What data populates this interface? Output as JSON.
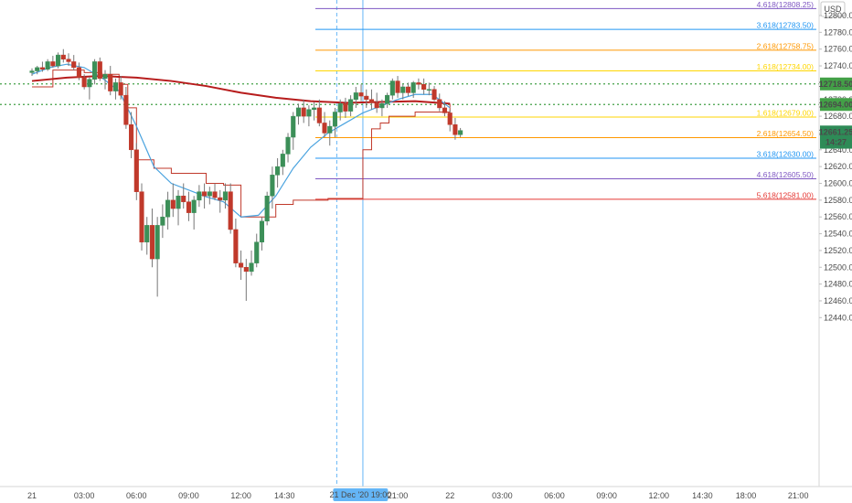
{
  "chart_data": {
    "type": "candlestick",
    "currency": "USD",
    "title": "",
    "xlabel": "",
    "ylabel": "",
    "ylim": [
      12420,
      12818
    ],
    "y_ticks": [
      12440,
      12460,
      12480,
      12500,
      12520,
      12540,
      12560,
      12580,
      12600,
      12620,
      12640,
      12660,
      12680,
      12700,
      12720,
      12740,
      12760,
      12780,
      12800
    ],
    "x_ticks": [
      {
        "t": 0,
        "label": "21"
      },
      {
        "t": 3,
        "label": "03:00"
      },
      {
        "t": 6,
        "label": "06:00"
      },
      {
        "t": 9,
        "label": "09:00"
      },
      {
        "t": 12,
        "label": "12:00"
      },
      {
        "t": 14.5,
        "label": "14:30"
      },
      {
        "t": 21,
        "label": "21:00"
      },
      {
        "t": 24,
        "label": "22"
      },
      {
        "t": 27,
        "label": "03:00"
      },
      {
        "t": 30,
        "label": "06:00"
      },
      {
        "t": 33,
        "label": "09:00"
      },
      {
        "t": 36,
        "label": "12:00"
      },
      {
        "t": 38.5,
        "label": "14:30"
      },
      {
        "t": 41,
        "label": "18:00"
      },
      {
        "t": 44,
        "label": "21:00"
      }
    ],
    "crosshair_label": "21 Dec '20   19:00",
    "candles": [
      [
        0.0,
        12732,
        12737,
        12728,
        12734
      ],
      [
        0.3,
        12734,
        12740,
        12730,
        12738
      ],
      [
        0.6,
        12738,
        12745,
        12733,
        12736
      ],
      [
        0.9,
        12736,
        12748,
        12734,
        12745
      ],
      [
        1.2,
        12745,
        12752,
        12738,
        12740
      ],
      [
        1.5,
        12740,
        12756,
        12737,
        12753
      ],
      [
        1.8,
        12753,
        12760,
        12744,
        12748
      ],
      [
        2.1,
        12748,
        12755,
        12740,
        12745
      ],
      [
        2.4,
        12745,
        12753,
        12735,
        12738
      ],
      [
        2.7,
        12738,
        12744,
        12723,
        12726
      ],
      [
        3.0,
        12726,
        12730,
        12712,
        12715
      ],
      [
        3.3,
        12715,
        12727,
        12700,
        12724
      ],
      [
        3.6,
        12724,
        12748,
        12718,
        12745
      ],
      [
        3.9,
        12745,
        12750,
        12722,
        12725
      ],
      [
        4.2,
        12725,
        12735,
        12712,
        12730
      ],
      [
        4.5,
        12730,
        12740,
        12705,
        12710
      ],
      [
        4.8,
        12710,
        12725,
        12700,
        12720
      ],
      [
        5.1,
        12720,
        12728,
        12700,
        12705
      ],
      [
        5.4,
        12705,
        12715,
        12665,
        12670
      ],
      [
        5.7,
        12670,
        12685,
        12630,
        12640
      ],
      [
        6.0,
        12640,
        12648,
        12580,
        12590
      ],
      [
        6.3,
        12590,
        12600,
        12520,
        12530
      ],
      [
        6.6,
        12530,
        12560,
        12515,
        12550
      ],
      [
        6.9,
        12550,
        12570,
        12500,
        12510
      ],
      [
        7.2,
        12510,
        12560,
        12465,
        12550
      ],
      [
        7.5,
        12550,
        12575,
        12535,
        12560
      ],
      [
        7.8,
        12560,
        12590,
        12545,
        12580
      ],
      [
        8.1,
        12580,
        12600,
        12560,
        12570
      ],
      [
        8.4,
        12570,
        12592,
        12550,
        12585
      ],
      [
        8.7,
        12585,
        12600,
        12570,
        12578
      ],
      [
        9.0,
        12578,
        12590,
        12555,
        12565
      ],
      [
        9.3,
        12565,
        12585,
        12545,
        12580
      ],
      [
        9.6,
        12580,
        12598,
        12572,
        12590
      ],
      [
        9.9,
        12590,
        12600,
        12570,
        12585
      ],
      [
        10.2,
        12585,
        12596,
        12575,
        12590
      ],
      [
        10.5,
        12590,
        12600,
        12580,
        12583
      ],
      [
        10.8,
        12583,
        12592,
        12565,
        12580
      ],
      [
        11.1,
        12580,
        12600,
        12570,
        12590
      ],
      [
        11.4,
        12590,
        12600,
        12540,
        12545
      ],
      [
        11.7,
        12545,
        12558,
        12500,
        12505
      ],
      [
        12.0,
        12505,
        12520,
        12485,
        12500
      ],
      [
        12.3,
        12500,
        12510,
        12460,
        12495
      ],
      [
        12.6,
        12495,
        12520,
        12490,
        12505
      ],
      [
        12.9,
        12505,
        12540,
        12500,
        12530
      ],
      [
        13.2,
        12530,
        12560,
        12520,
        12555
      ],
      [
        13.5,
        12555,
        12590,
        12550,
        12585
      ],
      [
        13.8,
        12585,
        12620,
        12570,
        12610
      ],
      [
        14.1,
        12610,
        12630,
        12595,
        12620
      ],
      [
        14.4,
        12620,
        12640,
        12610,
        12635
      ],
      [
        14.7,
        12635,
        12660,
        12625,
        12655
      ],
      [
        15.0,
        12655,
        12685,
        12640,
        12680
      ],
      [
        15.3,
        12680,
        12695,
        12670,
        12690
      ],
      [
        15.6,
        12690,
        12700,
        12672,
        12680
      ],
      [
        15.9,
        12680,
        12693,
        12668,
        12688
      ],
      [
        16.2,
        12688,
        12697,
        12675,
        12690
      ],
      [
        16.5,
        12690,
        12700,
        12668,
        12672
      ],
      [
        16.8,
        12672,
        12685,
        12655,
        12660
      ],
      [
        17.1,
        12660,
        12675,
        12645,
        12668
      ],
      [
        17.4,
        12668,
        12690,
        12655,
        12685
      ],
      [
        17.7,
        12685,
        12700,
        12675,
        12695
      ],
      [
        18.0,
        12695,
        12702,
        12678,
        12686
      ],
      [
        18.3,
        12686,
        12705,
        12680,
        12700
      ],
      [
        18.6,
        12700,
        12715,
        12690,
        12708
      ],
      [
        18.9,
        12708,
        12718,
        12698,
        12704
      ],
      [
        19.2,
        12704,
        12712,
        12690,
        12700
      ],
      [
        19.5,
        12700,
        12712,
        12688,
        12696
      ],
      [
        19.8,
        12696,
        12708,
        12684,
        12690
      ],
      [
        20.1,
        12690,
        12700,
        12680,
        12695
      ],
      [
        20.4,
        12695,
        12708,
        12690,
        12705
      ],
      [
        20.7,
        12705,
        12725,
        12700,
        12722
      ],
      [
        21.0,
        12722,
        12728,
        12702,
        12708
      ],
      [
        21.3,
        12708,
        12718,
        12700,
        12715
      ],
      [
        21.6,
        12715,
        12720,
        12704,
        12708
      ],
      [
        21.9,
        12708,
        12722,
        12702,
        12720
      ],
      [
        22.2,
        12720,
        12725,
        12712,
        12718
      ],
      [
        22.5,
        12718,
        12725,
        12706,
        12712
      ],
      [
        22.8,
        12712,
        12720,
        12705,
        12712
      ],
      [
        23.1,
        12712,
        12716,
        12698,
        12700
      ],
      [
        23.4,
        12700,
        12707,
        12686,
        12690
      ],
      [
        23.7,
        12690,
        12698,
        12680,
        12684
      ],
      [
        24.0,
        12684,
        12688,
        12662,
        12670
      ],
      [
        24.3,
        12670,
        12678,
        12652,
        12658
      ],
      [
        24.6,
        12658,
        12666,
        12655,
        12663
      ]
    ],
    "fib_levels": [
      {
        "label": "4.618(12808.25)",
        "value": 12808.25,
        "color": "#7e57c2"
      },
      {
        "label": "3.618(12783.50)",
        "value": 12783.5,
        "color": "#2196f3"
      },
      {
        "label": "2.618(12758.75)",
        "value": 12758.75,
        "color": "#ff9800"
      },
      {
        "label": "1.618(12734.00)",
        "value": 12734.0,
        "color": "#ffd600"
      },
      {
        "label": "1.618(12679.00)",
        "value": 12679.0,
        "color": "#ffd600"
      },
      {
        "label": "2.618(12654.50)",
        "value": 12654.5,
        "color": "#ff9800"
      },
      {
        "label": "3.618(12630.00)",
        "value": 12630.0,
        "color": "#2196f3"
      },
      {
        "label": "4.618(12605.50)",
        "value": 12605.5,
        "color": "#7e57c2"
      },
      {
        "label": "5.618(12581.00)",
        "value": 12581.0,
        "color": "#e53935"
      }
    ],
    "price_labels": [
      {
        "value": 12718.5,
        "label": "12718.50",
        "color": "#43a047"
      },
      {
        "value": 12694.0,
        "label": "12694.00",
        "color": "#43a047"
      },
      {
        "value": 12661.25,
        "label": "12661.25",
        "color": "#2e8b57"
      },
      {
        "value": 12649.0,
        "label": "14:27",
        "color": "#2e8b57"
      }
    ],
    "hlines": [
      {
        "value": 12718.5,
        "color": "#43a047"
      },
      {
        "value": 12694.0,
        "color": "#43a047"
      }
    ],
    "ma_slow": [
      [
        0,
        12722
      ],
      [
        2,
        12726
      ],
      [
        4,
        12728
      ],
      [
        6,
        12726
      ],
      [
        8,
        12722
      ],
      [
        10,
        12716
      ],
      [
        12,
        12708
      ],
      [
        14,
        12702
      ],
      [
        16,
        12698
      ],
      [
        18,
        12696
      ],
      [
        20,
        12697
      ],
      [
        22,
        12698
      ],
      [
        24,
        12695
      ]
    ],
    "ma_fast": [
      [
        0,
        12730
      ],
      [
        1,
        12738
      ],
      [
        2,
        12742
      ],
      [
        3,
        12738
      ],
      [
        4,
        12726
      ],
      [
        5,
        12710
      ],
      [
        6,
        12668
      ],
      [
        7,
        12620
      ],
      [
        8,
        12600
      ],
      [
        9,
        12592
      ],
      [
        10,
        12584
      ],
      [
        11,
        12578
      ],
      [
        12,
        12560
      ],
      [
        13,
        12562
      ],
      [
        14,
        12585
      ],
      [
        15,
        12618
      ],
      [
        16,
        12643
      ],
      [
        17,
        12660
      ],
      [
        18,
        12672
      ],
      [
        19,
        12684
      ],
      [
        20,
        12692
      ],
      [
        21,
        12700
      ],
      [
        22,
        12706
      ],
      [
        23,
        12706
      ],
      [
        24,
        12690
      ]
    ],
    "stop_line": [
      [
        0,
        12715
      ],
      [
        1.2,
        12735
      ],
      [
        3,
        12732
      ],
      [
        4,
        12730
      ],
      [
        5,
        12718
      ],
      [
        5.5,
        12690
      ],
      [
        6,
        12628
      ],
      [
        7,
        12618
      ],
      [
        8,
        12612
      ],
      [
        10,
        12600
      ],
      [
        11,
        12598
      ],
      [
        12,
        12560
      ],
      [
        13,
        12560
      ],
      [
        14,
        12575
      ],
      [
        15,
        12580
      ],
      [
        17,
        12582
      ],
      [
        18,
        12582
      ],
      [
        19,
        12640
      ],
      [
        19.5,
        12665
      ],
      [
        20,
        12672
      ],
      [
        20.5,
        12680
      ],
      [
        22,
        12685
      ],
      [
        23,
        12685
      ],
      [
        24,
        12695
      ]
    ],
    "vlines": [
      {
        "t": 17.5,
        "style": "dashed"
      },
      {
        "t": 19.0,
        "style": "solid"
      }
    ]
  }
}
